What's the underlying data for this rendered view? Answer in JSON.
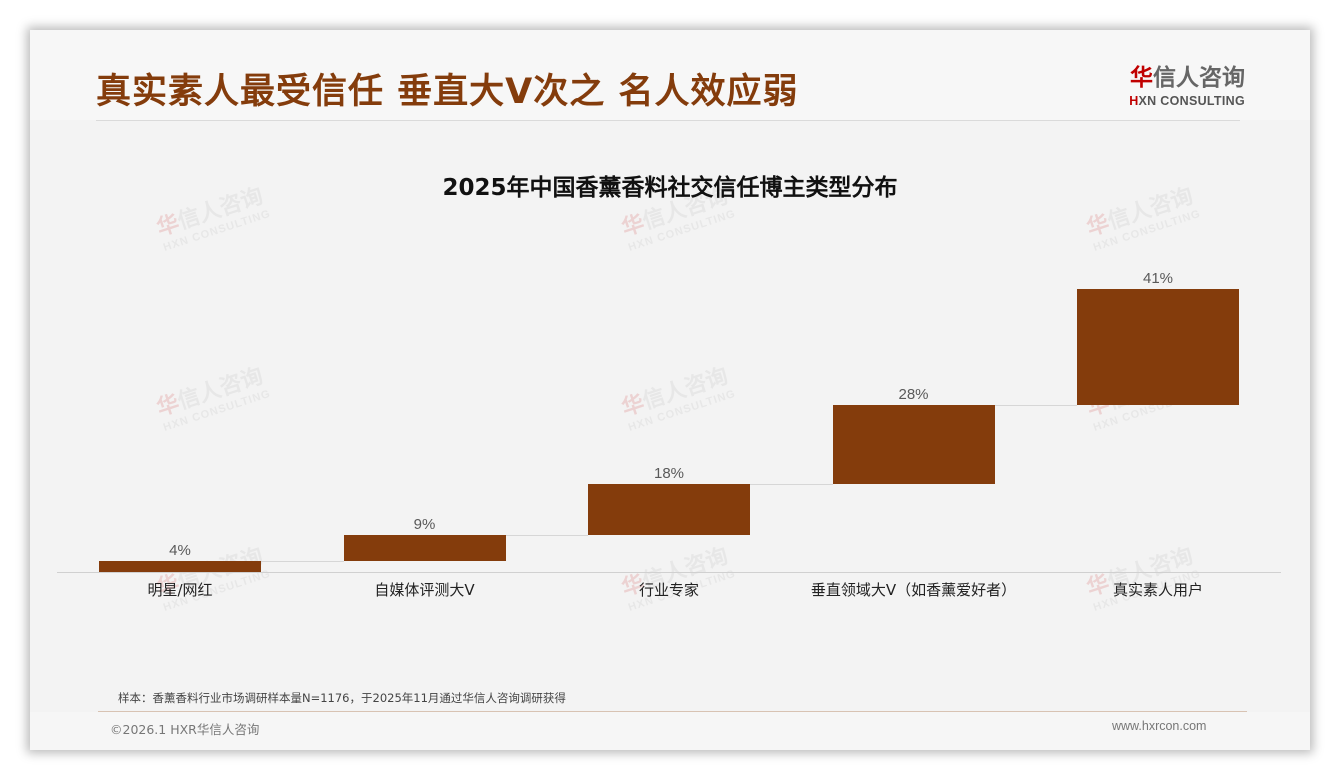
{
  "slide": {
    "title": "真实素人最受信任 垂直大V次之 名人效应弱",
    "logo": {
      "cn_accent": "华",
      "cn_rest": "信人咨询",
      "en_mark": "H",
      "en_rest": "XN CONSULTING"
    },
    "watermark": {
      "cn_accent": "华",
      "cn_rest": "信人咨询",
      "en": "HXN CONSULTING"
    },
    "note": "样本：香薰香料行业市场调研样本量N=1176，于2025年11月通过华信人咨询调研获得",
    "copyright": "©2026.1 HXR华信人咨询",
    "website": "www.hxrcon.com"
  },
  "colors": {
    "title": "#843c0c",
    "bar": "#843c0c",
    "logo_accent": "#c00000",
    "background": "#f3f3f3"
  },
  "chart_data": {
    "type": "bar",
    "subtype": "waterfall",
    "title": "2025年中国香薰香料社交信任博主类型分布",
    "categories": [
      "明星/网红",
      "自媒体评测大V",
      "行业专家",
      "垂直领域大V（如香薰爱好者）",
      "真实素人用户"
    ],
    "values": [
      4,
      9,
      18,
      28,
      41
    ],
    "value_labels": [
      "4%",
      "9%",
      "18%",
      "28%",
      "41%"
    ],
    "cumulative_start": [
      0,
      4,
      13,
      31,
      59
    ],
    "cumulative_end": [
      4,
      13,
      31,
      59,
      100
    ],
    "unit": "%",
    "xlabel": "",
    "ylabel": "",
    "ylim": [
      0,
      100
    ],
    "grid": false,
    "legend": "none",
    "connectors": true
  }
}
